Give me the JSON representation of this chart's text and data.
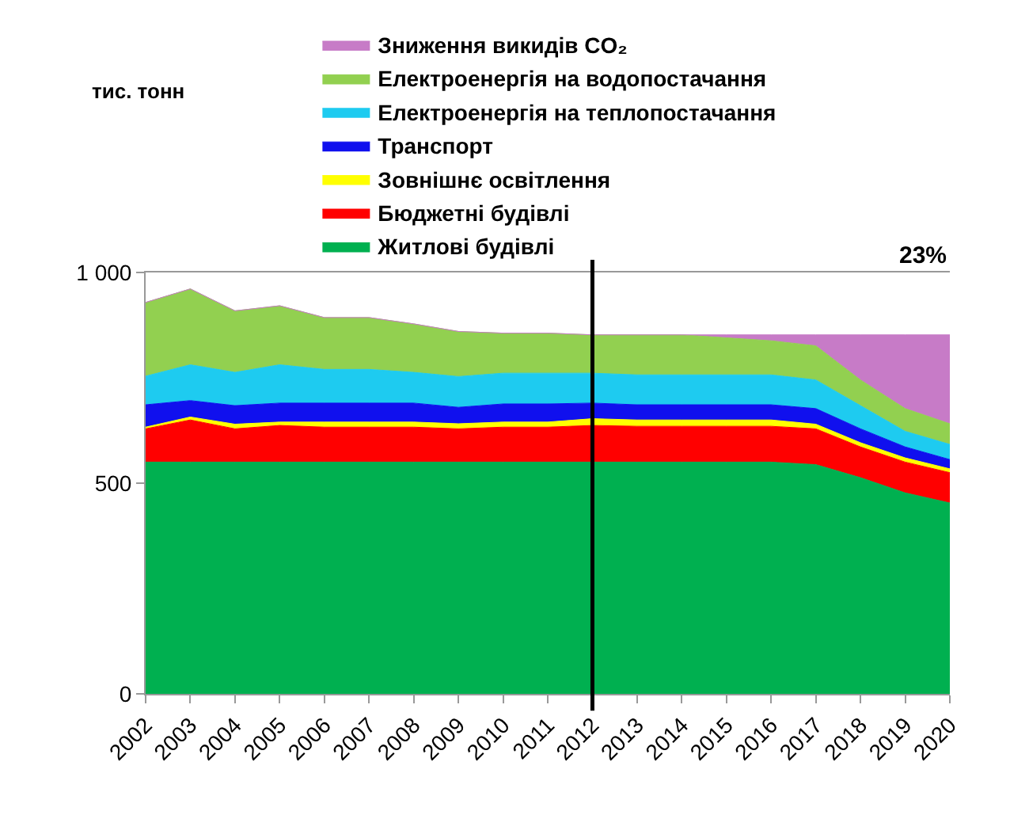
{
  "chart_data": {
    "type": "area",
    "stacked": true,
    "x": [
      2002,
      2003,
      2004,
      2005,
      2006,
      2007,
      2008,
      2009,
      2010,
      2011,
      2012,
      2013,
      2014,
      2015,
      2016,
      2017,
      2018,
      2019,
      2020
    ],
    "xlim": [
      2002,
      2020
    ],
    "xticks": [
      2002,
      2003,
      2004,
      2005,
      2006,
      2007,
      2008,
      2009,
      2010,
      2011,
      2012,
      2013,
      2014,
      2015,
      2016,
      2017,
      2018,
      2019,
      2020
    ],
    "ylim": [
      0,
      1000
    ],
    "yticks": [
      0,
      500,
      {
        "value": 1000,
        "label": "1 000"
      }
    ],
    "legend": "top",
    "series": [
      {
        "name": "Житлові будівлі",
        "color": "#00b050",
        "values": [
          550,
          550,
          550,
          550,
          550,
          550,
          550,
          550,
          550,
          550,
          550,
          550,
          550,
          550,
          550,
          544,
          513,
          477,
          453
        ]
      },
      {
        "name": "Бюджетні будівлі",
        "color": "#ff0000",
        "values": [
          79,
          100,
          79,
          87,
          83,
          83,
          83,
          79,
          83,
          83,
          87,
          85,
          85,
          85,
          85,
          85,
          73,
          73,
          72
        ]
      },
      {
        "name": "Зовнішнє освітлення",
        "color": "#ffff00",
        "values": [
          4,
          7,
          11,
          8,
          12,
          12,
          12,
          12,
          12,
          12,
          16,
          15,
          15,
          15,
          15,
          11,
          10,
          10,
          9
        ]
      },
      {
        "name": "Транспорт",
        "color": "#1010ee",
        "values": [
          53,
          39,
          44,
          45,
          45,
          45,
          45,
          39,
          43,
          43,
          37,
          36,
          36,
          36,
          36,
          37,
          33,
          26,
          22
        ]
      },
      {
        "name": "Електроенергія на теплопостачання",
        "color": "#1ecbf0",
        "values": [
          68,
          85,
          79,
          91,
          80,
          80,
          73,
          73,
          73,
          73,
          71,
          71,
          71,
          71,
          71,
          68,
          55,
          37,
          36
        ]
      },
      {
        "name": "Електроенергія на водопостачання",
        "color": "#92d050",
        "values": [
          175,
          180,
          146,
          140,
          123,
          123,
          115,
          107,
          95,
          95,
          91,
          95,
          95,
          88,
          81,
          81,
          61,
          54,
          49
        ]
      },
      {
        "name": "Зниження викидів CO₂",
        "color": "#c77bc7",
        "values": [
          0,
          0,
          0,
          0,
          0,
          0,
          0,
          0,
          0,
          0,
          0,
          0,
          0,
          7,
          14,
          26,
          107,
          175,
          211
        ]
      }
    ],
    "ref_lines": [
      {
        "axis": "x",
        "value": 2012,
        "color": "#000000"
      }
    ],
    "annotations": [
      "тис. тонн",
      "23%"
    ]
  }
}
